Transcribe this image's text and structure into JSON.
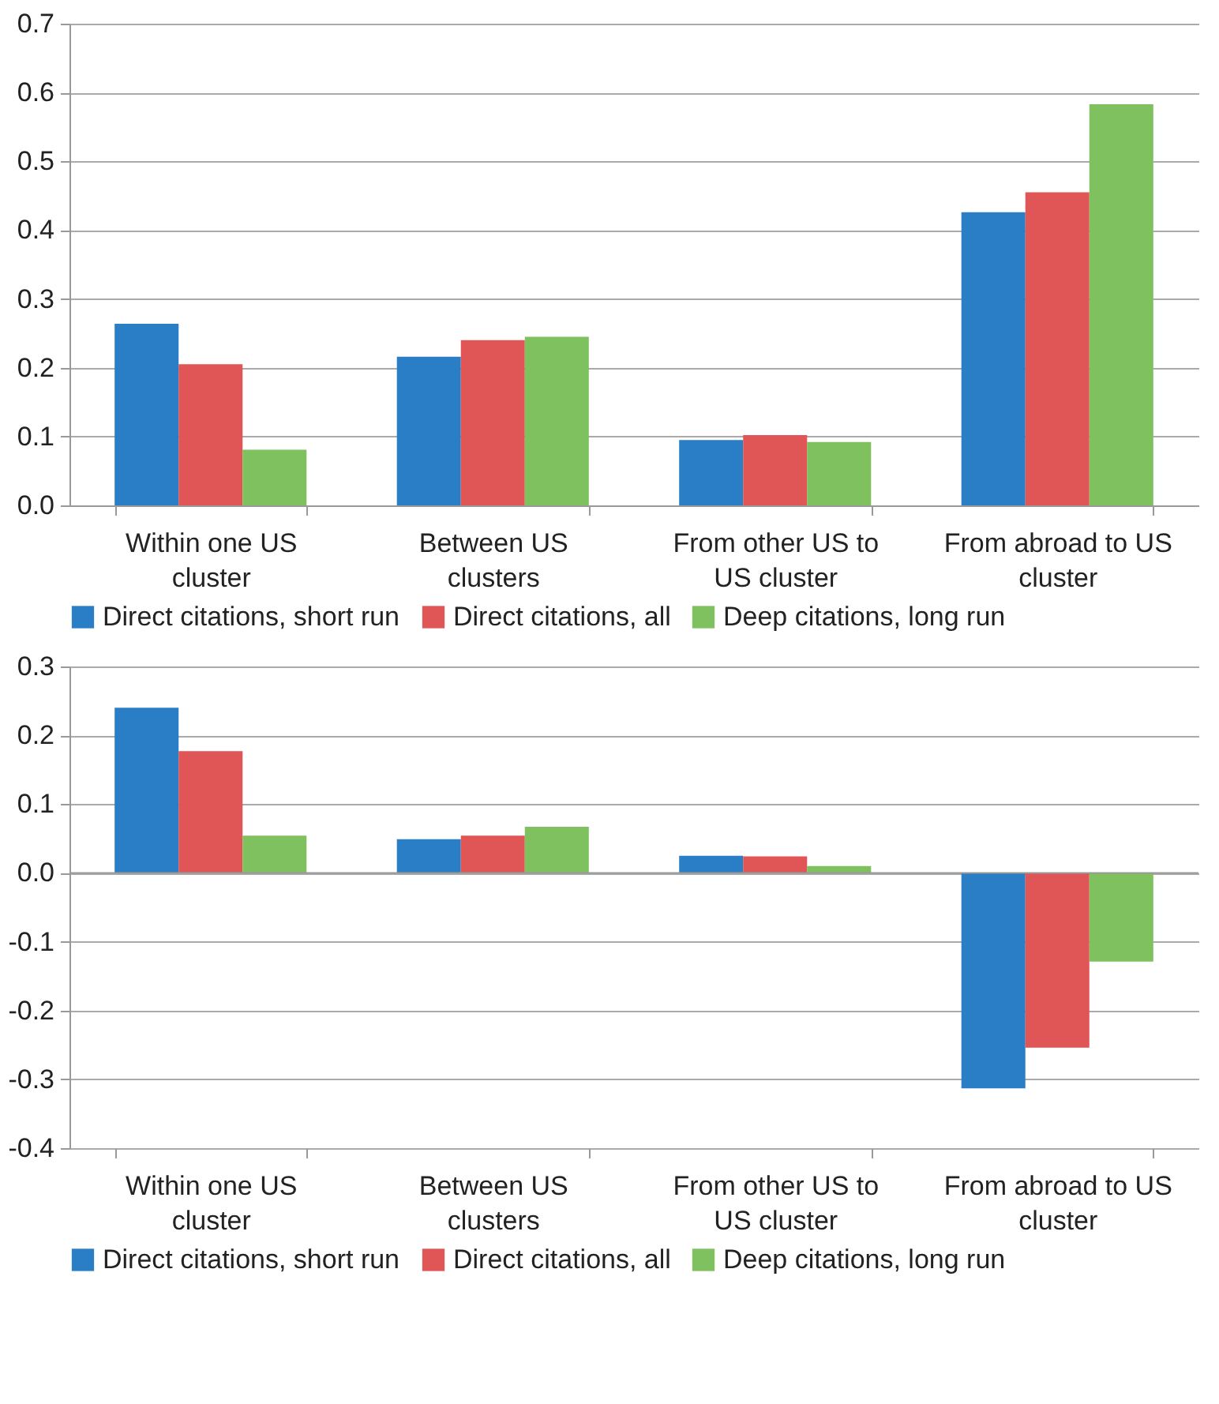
{
  "chart_data": [
    {
      "type": "bar",
      "categories": [
        "Within one US\ncluster",
        "Between US\nclusters",
        "From other US to\nUS cluster",
        "From abroad to US\ncluster"
      ],
      "series": [
        {
          "name": "Direct citations, short run",
          "color": "#2a7ec5",
          "values": [
            0.264,
            0.216,
            0.095,
            0.426
          ]
        },
        {
          "name": "Direct citations, all",
          "color": "#e05555",
          "values": [
            0.205,
            0.24,
            0.102,
            0.455
          ]
        },
        {
          "name": "Deep citations, long run",
          "color": "#7fc15e",
          "values": [
            0.081,
            0.245,
            0.092,
            0.583
          ]
        }
      ],
      "ylim": [
        0,
        0.7
      ],
      "yticks": [
        {
          "value": 0,
          "label": "0.0"
        },
        0.1,
        0.2,
        0.3,
        0.4,
        0.5,
        0.6,
        0.7
      ],
      "grid": "y",
      "legend": "bottom"
    },
    {
      "type": "bar",
      "categories": [
        "Within one US\ncluster",
        "Between US\nclusters",
        "From other US to\nUS cluster",
        "From abroad to US\ncluster"
      ],
      "series": [
        {
          "name": "Direct citations, short run",
          "color": "#2a7ec5",
          "values": [
            0.24,
            0.049,
            0.025,
            -0.313
          ]
        },
        {
          "name": "Direct citations, all",
          "color": "#e05555",
          "values": [
            0.177,
            0.054,
            0.024,
            -0.254
          ]
        },
        {
          "name": "Deep citations, long run",
          "color": "#7fc15e",
          "values": [
            0.054,
            0.067,
            0.01,
            -0.129
          ]
        }
      ],
      "ylim": [
        -0.4,
        0.3
      ],
      "yticks": [
        -0.4,
        -0.3,
        -0.2,
        -0.1,
        {
          "value": 0,
          "label": "0.0"
        },
        0.1,
        0.2,
        0.3
      ],
      "grid": "y",
      "legend": "bottom"
    }
  ]
}
